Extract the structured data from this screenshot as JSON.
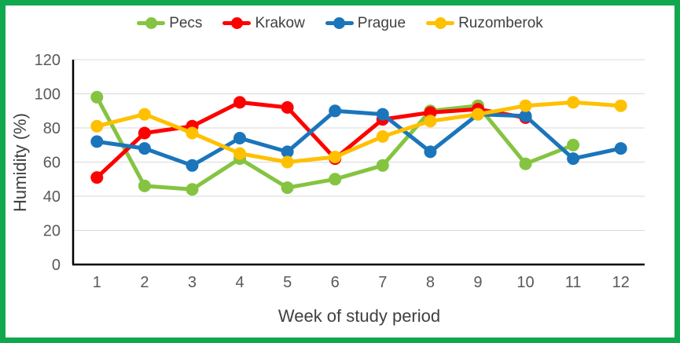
{
  "chart_data": {
    "type": "line",
    "title": "",
    "xlabel": "Week of study period",
    "ylabel": "Humidity (%)",
    "x": [
      1,
      2,
      3,
      4,
      5,
      6,
      7,
      8,
      9,
      10,
      11,
      12
    ],
    "ylim": [
      0,
      120
    ],
    "ytick_step": 20,
    "grid": true,
    "legend_position": "top-center",
    "series": [
      {
        "name": "Pecs",
        "color": "#84c441",
        "values": [
          98,
          46,
          44,
          62,
          45,
          50,
          58,
          90,
          93,
          59,
          70,
          null
        ]
      },
      {
        "name": "Krakow",
        "color": "#fe0000",
        "values": [
          51,
          77,
          81,
          95,
          92,
          62,
          85,
          89,
          91,
          86,
          null,
          null
        ]
      },
      {
        "name": "Prague",
        "color": "#1b75bb",
        "values": [
          72,
          68,
          58,
          74,
          66,
          90,
          88,
          66,
          88,
          87,
          62,
          68
        ]
      },
      {
        "name": "Ruzomberok",
        "color": "#ffc000",
        "values": [
          81,
          88,
          77,
          65,
          60,
          63,
          75,
          84,
          88,
          93,
          95,
          93
        ]
      }
    ]
  },
  "style": {
    "frame_color": "#10a74f",
    "axis_line_color": "#000000",
    "gridline_color": "#d9d9d9",
    "tick_label_color": "#595959",
    "axis_title_color": "#404040",
    "legend_text_color": "#404040",
    "background": "#ffffff"
  }
}
